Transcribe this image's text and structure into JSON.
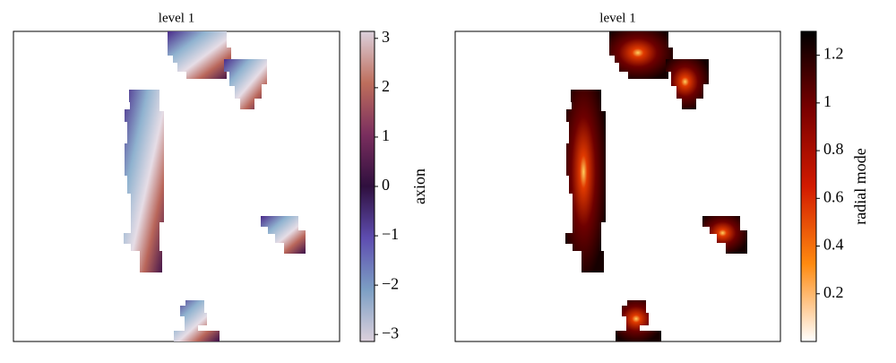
{
  "chart_data": [
    {
      "type": "heatmap",
      "title": "level 1",
      "colorbar_label": "axion",
      "clim": [
        -3.1416,
        3.1416
      ],
      "cticks": [
        3,
        2,
        1,
        0,
        {
          "value": -1,
          "label": "−1"
        },
        {
          "value": -2,
          "label": "−2"
        },
        {
          "value": -3,
          "label": "−3"
        }
      ],
      "colormap": [
        "#dcd0dc",
        "#7c9fc4",
        "#5e4db0",
        "#2f0f3e",
        "#7a2e5e",
        "#be6e5c",
        "#dcd0dc"
      ]
    },
    {
      "type": "heatmap",
      "title": "level 1",
      "colorbar_label": "radial mode",
      "clim": [
        0,
        1.3
      ],
      "cticks": [
        0.2,
        0.4,
        0.6,
        0.8,
        1.0,
        1.2
      ],
      "colormap": [
        "#ffffff",
        "#ff8a10",
        "#d21a00",
        "#7a0000",
        "#000000"
      ]
    }
  ]
}
